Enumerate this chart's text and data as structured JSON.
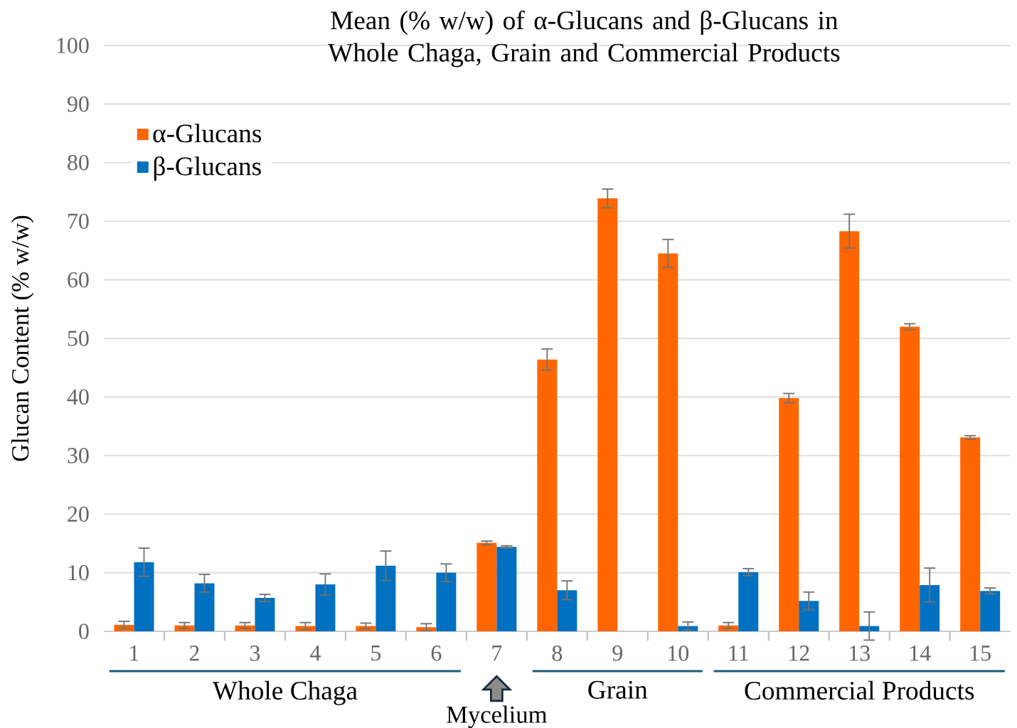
{
  "chart_data": {
    "type": "bar",
    "title": "Mean (% w/w) of α-Glucans and β-Glucans in Whole Chaga, Grain and Commercial Products",
    "ylabel": "Glucan Content  (% w/w)",
    "categories": [
      "1",
      "2",
      "3",
      "4",
      "5",
      "6",
      "7",
      "8",
      "9",
      "10",
      "11",
      "12",
      "13",
      "14",
      "15"
    ],
    "series": [
      {
        "name": "α-Glucans",
        "color": "#ff6600",
        "values": [
          1.1,
          1.0,
          1.0,
          0.9,
          0.9,
          0.7,
          15.1,
          46.4,
          73.9,
          64.5,
          1.0,
          39.8,
          68.3,
          52.0,
          33.1
        ],
        "errors": [
          0.6,
          0.5,
          0.5,
          0.6,
          0.5,
          0.6,
          0.3,
          1.8,
          1.6,
          2.4,
          0.5,
          0.8,
          2.9,
          0.5,
          0.3
        ]
      },
      {
        "name": "β-Glucans",
        "color": "#0070c0",
        "values": [
          11.8,
          8.2,
          5.7,
          8.0,
          11.2,
          10.0,
          14.4,
          7.0,
          null,
          0.9,
          10.1,
          5.2,
          0.9,
          7.9,
          6.9
        ],
        "errors": [
          2.4,
          1.5,
          0.6,
          1.8,
          2.5,
          1.5,
          0.2,
          1.6,
          null,
          0.7,
          0.6,
          1.5,
          2.4,
          2.9,
          0.5
        ]
      }
    ],
    "ylim": [
      0,
      100
    ],
    "yticks": [
      0,
      10,
      20,
      30,
      40,
      50,
      60,
      70,
      80,
      90,
      100
    ],
    "grid": "y",
    "legend": "top left",
    "annotations": [
      "Whole Chaga",
      "Mycelium",
      "Grain",
      "Commercial Products"
    ]
  }
}
